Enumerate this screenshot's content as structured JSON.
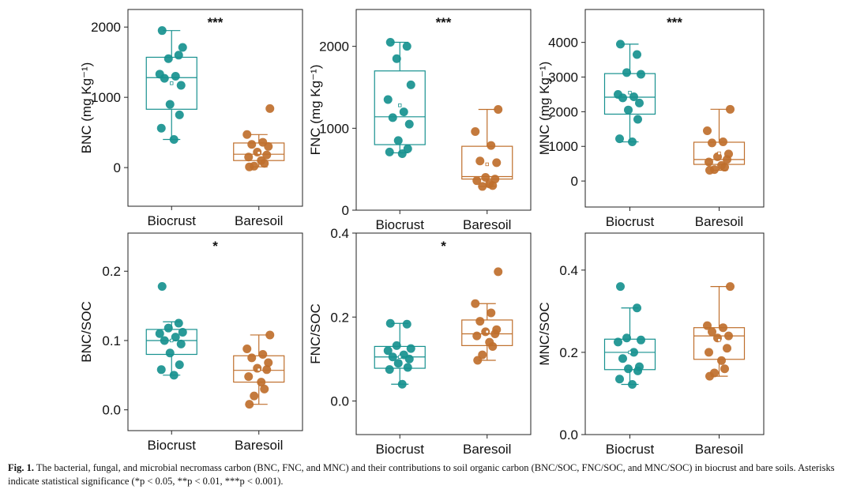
{
  "colors": {
    "biocrust": "#17918f",
    "baresoil": "#bf6f2c",
    "frame": "#222222"
  },
  "figure_caption": {
    "label": "Fig. 1.",
    "text": "The bacterial, fungal, and microbial necromass carbon (BNC, FNC, and MNC) and their contributions to soil organic carbon (BNC/SOC, FNC/SOC, and MNC/SOC) in biocrust and bare soils. Asterisks indicate statistical significance (*p < 0.05, **p < 0.01, ***p < 0.001)."
  },
  "chart_data": [
    {
      "type": "box",
      "ylabel": "BNC (mg Kg⁻¹)",
      "ylim": [
        -550,
        2250
      ],
      "yticks": [
        0,
        1000,
        2000
      ],
      "tick_labels": [
        "0",
        "1000",
        "2000"
      ],
      "categories": [
        "Biocrust",
        "Baresoil"
      ],
      "significance": "***",
      "series": [
        {
          "name": "Biocrust",
          "box": {
            "min": 400,
            "q1": 830,
            "median": 1280,
            "q3": 1570,
            "max": 1950,
            "mean": 1200
          },
          "points": [
            1950,
            1600,
            1550,
            1710,
            1330,
            1300,
            1270,
            1170,
            900,
            750,
            560,
            400
          ]
        },
        {
          "name": "Baresoil",
          "box": {
            "min": 10,
            "q1": 100,
            "median": 190,
            "q3": 350,
            "max": 470,
            "mean": 210
          },
          "points": [
            840,
            470,
            360,
            330,
            300,
            220,
            180,
            150,
            100,
            60,
            20,
            10
          ]
        }
      ]
    },
    {
      "type": "box",
      "ylabel": "FNC (mg Kg⁻¹)",
      "ylim": [
        0,
        2450
      ],
      "yticks": [
        0,
        1000,
        2000
      ],
      "tick_labels": [
        "0",
        "1000",
        "2000"
      ],
      "categories": [
        "Biocrust",
        "Baresoil"
      ],
      "significance": "***",
      "series": [
        {
          "name": "Biocrust",
          "box": {
            "min": 700,
            "q1": 800,
            "median": 1140,
            "q3": 1700,
            "max": 2050,
            "mean": 1280
          },
          "points": [
            2050,
            2000,
            1850,
            1530,
            1350,
            1200,
            1130,
            1050,
            850,
            750,
            710,
            690
          ]
        },
        {
          "name": "Baresoil",
          "box": {
            "min": 290,
            "q1": 380,
            "median": 410,
            "q3": 780,
            "max": 1230,
            "mean": 560
          },
          "points": [
            1230,
            960,
            790,
            600,
            580,
            400,
            380,
            360,
            320,
            300,
            290
          ]
        }
      ]
    },
    {
      "type": "box",
      "ylabel": "MNC (mg Kg⁻¹)",
      "ylim": [
        -750,
        4950
      ],
      "yticks": [
        0,
        1000,
        2000,
        3000,
        4000
      ],
      "tick_labels": [
        "0",
        "1000",
        "2000",
        "3000",
        "4000"
      ],
      "categories": [
        "Biocrust",
        "Baresoil"
      ],
      "significance": "***",
      "series": [
        {
          "name": "Biocrust",
          "box": {
            "min": 1130,
            "q1": 1930,
            "median": 2420,
            "q3": 3100,
            "max": 3950,
            "mean": 2550
          },
          "points": [
            3950,
            3650,
            3130,
            3080,
            2500,
            2430,
            2400,
            2250,
            2050,
            1780,
            1220,
            1130
          ]
        },
        {
          "name": "Baresoil",
          "box": {
            "min": 310,
            "q1": 480,
            "median": 620,
            "q3": 1120,
            "max": 2070,
            "mean": 800
          },
          "points": [
            2070,
            1450,
            1130,
            1100,
            780,
            700,
            620,
            550,
            450,
            400,
            330,
            310
          ]
        }
      ]
    },
    {
      "type": "box",
      "ylabel": "BNC/SOC",
      "ylim": [
        -0.03,
        0.255
      ],
      "yticks": [
        0.0,
        0.1,
        0.2
      ],
      "tick_labels": [
        "0.0",
        "0.1",
        "0.2"
      ],
      "categories": [
        "Biocrust",
        "Baresoil"
      ],
      "significance": "*",
      "series": [
        {
          "name": "Biocrust",
          "box": {
            "min": 0.05,
            "q1": 0.08,
            "median": 0.1,
            "q3": 0.116,
            "max": 0.127,
            "mean": 0.1
          },
          "points": [
            0.178,
            0.125,
            0.118,
            0.112,
            0.11,
            0.105,
            0.1,
            0.095,
            0.082,
            0.065,
            0.058,
            0.05
          ]
        },
        {
          "name": "Baresoil",
          "box": {
            "min": 0.008,
            "q1": 0.04,
            "median": 0.057,
            "q3": 0.078,
            "max": 0.108,
            "mean": 0.058
          },
          "points": [
            0.108,
            0.088,
            0.08,
            0.075,
            0.068,
            0.06,
            0.058,
            0.048,
            0.04,
            0.03,
            0.02,
            0.008
          ]
        }
      ]
    },
    {
      "type": "box",
      "ylabel": "FNC/SOC",
      "ylim": [
        -0.08,
        0.4
      ],
      "yticks": [
        0.0,
        0.2,
        0.4
      ],
      "tick_labels": [
        "0.0",
        "0.2",
        "0.4"
      ],
      "categories": [
        "Biocrust",
        "Baresoil"
      ],
      "significance": "*",
      "series": [
        {
          "name": "Biocrust",
          "box": {
            "min": 0.04,
            "q1": 0.078,
            "median": 0.105,
            "q3": 0.13,
            "max": 0.185,
            "mean": 0.105
          },
          "points": [
            0.185,
            0.183,
            0.132,
            0.125,
            0.12,
            0.11,
            0.105,
            0.1,
            0.09,
            0.08,
            0.075,
            0.04
          ]
        },
        {
          "name": "Baresoil",
          "box": {
            "min": 0.097,
            "q1": 0.132,
            "median": 0.16,
            "q3": 0.193,
            "max": 0.232,
            "mean": 0.165
          },
          "points": [
            0.308,
            0.232,
            0.21,
            0.19,
            0.17,
            0.165,
            0.16,
            0.155,
            0.14,
            0.13,
            0.11,
            0.097
          ]
        }
      ]
    },
    {
      "type": "box",
      "ylabel": "MNC/SOC",
      "ylim": [
        0,
        0.49
      ],
      "yticks": [
        0.0,
        0.2,
        0.4
      ],
      "tick_labels": [
        "0.0",
        "0.2",
        "0.4"
      ],
      "categories": [
        "Biocrust",
        "Baresoil"
      ],
      "significance": "",
      "series": [
        {
          "name": "Biocrust",
          "box": {
            "min": 0.122,
            "q1": 0.158,
            "median": 0.2,
            "q3": 0.232,
            "max": 0.308,
            "mean": 0.2
          },
          "points": [
            0.36,
            0.308,
            0.235,
            0.23,
            0.225,
            0.2,
            0.185,
            0.165,
            0.16,
            0.155,
            0.135,
            0.122
          ]
        },
        {
          "name": "Baresoil",
          "box": {
            "min": 0.142,
            "q1": 0.183,
            "median": 0.24,
            "q3": 0.26,
            "max": 0.36,
            "mean": 0.23
          },
          "points": [
            0.36,
            0.265,
            0.26,
            0.25,
            0.24,
            0.235,
            0.21,
            0.2,
            0.18,
            0.16,
            0.15,
            0.142
          ]
        }
      ]
    }
  ]
}
